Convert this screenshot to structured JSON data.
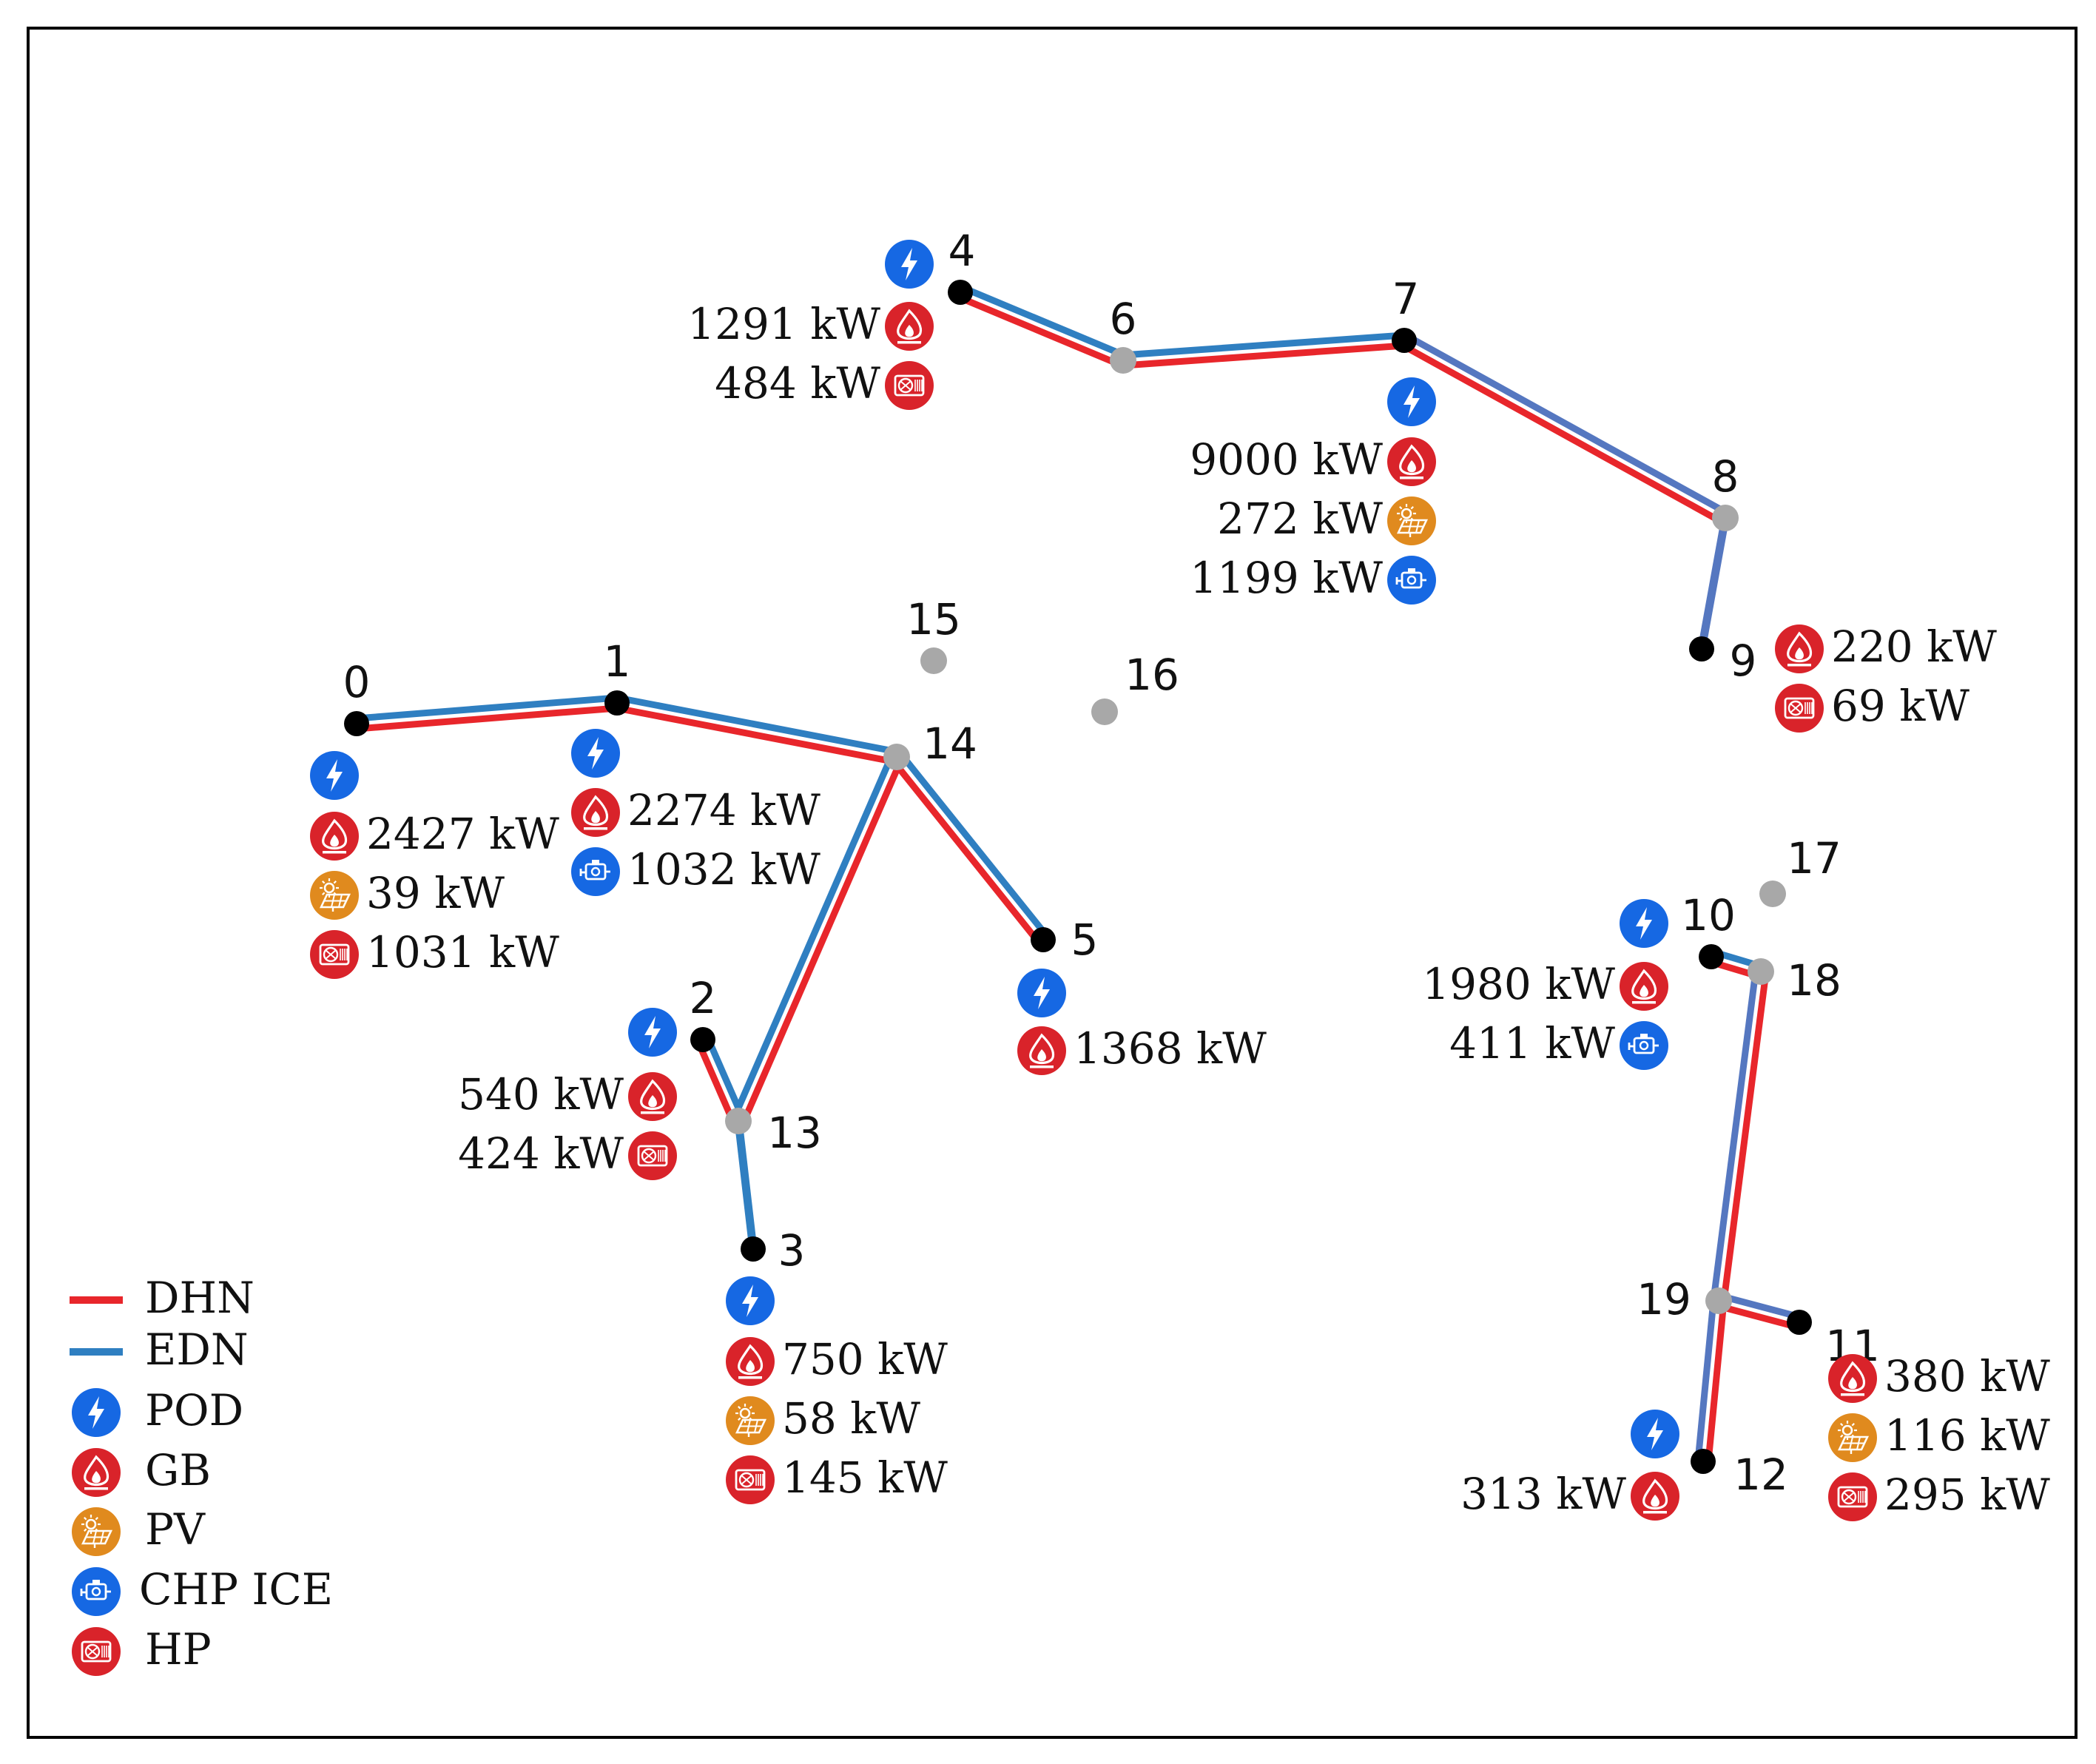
{
  "colors": {
    "dhn": "#e8262b",
    "edn": "#2f7fc1",
    "edn_alt": "#5577c0",
    "pod": "#1668e3",
    "gb": "#d9232a",
    "pv": "#e08a1e",
    "chp": "#1668e3",
    "hp": "#d9232a",
    "node_black": "#000000",
    "node_gray": "#a8a8a8"
  },
  "legend": [
    {
      "key": "dhn",
      "label": "DHN",
      "kind": "line"
    },
    {
      "key": "edn",
      "label": "EDN",
      "kind": "line"
    },
    {
      "key": "pod",
      "label": "POD",
      "kind": "icon"
    },
    {
      "key": "gb",
      "label": "GB",
      "kind": "icon"
    },
    {
      "key": "pv",
      "label": "PV",
      "kind": "icon"
    },
    {
      "key": "chp",
      "label": "CHP ICE",
      "kind": "icon"
    },
    {
      "key": "hp",
      "label": "HP",
      "kind": "icon"
    }
  ],
  "nodes": [
    {
      "id": "0",
      "label": "0",
      "type": "black"
    },
    {
      "id": "1",
      "label": "1",
      "type": "black"
    },
    {
      "id": "2",
      "label": "2",
      "type": "black"
    },
    {
      "id": "3",
      "label": "3",
      "type": "black"
    },
    {
      "id": "4",
      "label": "4",
      "type": "black"
    },
    {
      "id": "5",
      "label": "5",
      "type": "black"
    },
    {
      "id": "6",
      "label": "6",
      "type": "gray"
    },
    {
      "id": "7",
      "label": "7",
      "type": "black"
    },
    {
      "id": "8",
      "label": "8",
      "type": "gray"
    },
    {
      "id": "9",
      "label": "9",
      "type": "black"
    },
    {
      "id": "10",
      "label": "10",
      "type": "black"
    },
    {
      "id": "11",
      "label": "11",
      "type": "black"
    },
    {
      "id": "12",
      "label": "12",
      "type": "black"
    },
    {
      "id": "13",
      "label": "13",
      "type": "gray"
    },
    {
      "id": "14",
      "label": "14",
      "type": "gray"
    },
    {
      "id": "15",
      "label": "15",
      "type": "gray"
    },
    {
      "id": "16",
      "label": "16",
      "type": "gray"
    },
    {
      "id": "17",
      "label": "17",
      "type": "gray"
    },
    {
      "id": "18",
      "label": "18",
      "type": "gray"
    },
    {
      "id": "19",
      "label": "19",
      "type": "gray"
    }
  ],
  "edges": [
    {
      "from": "0",
      "to": "1",
      "networks": [
        "dhn",
        "edn"
      ]
    },
    {
      "from": "1",
      "to": "14",
      "networks": [
        "dhn",
        "edn"
      ]
    },
    {
      "from": "14",
      "to": "5",
      "networks": [
        "dhn",
        "edn"
      ]
    },
    {
      "from": "14",
      "to": "13",
      "networks": [
        "dhn",
        "edn"
      ]
    },
    {
      "from": "2",
      "to": "13",
      "networks": [
        "dhn",
        "edn"
      ]
    },
    {
      "from": "13",
      "to": "3",
      "networks": [
        "edn"
      ]
    },
    {
      "from": "4",
      "to": "6",
      "networks": [
        "dhn",
        "edn"
      ]
    },
    {
      "from": "6",
      "to": "7",
      "networks": [
        "dhn",
        "edn"
      ]
    },
    {
      "from": "7",
      "to": "8",
      "networks": [
        "dhn",
        "edn_alt"
      ]
    },
    {
      "from": "8",
      "to": "9",
      "networks": [
        "edn_alt"
      ]
    },
    {
      "from": "10",
      "to": "18",
      "networks": [
        "dhn",
        "edn"
      ]
    },
    {
      "from": "18",
      "to": "19",
      "networks": [
        "dhn",
        "edn_alt"
      ]
    },
    {
      "from": "19",
      "to": "11",
      "networks": [
        "dhn",
        "edn_alt"
      ]
    },
    {
      "from": "19",
      "to": "12",
      "networks": [
        "dhn",
        "edn_alt"
      ]
    }
  ],
  "pods": [
    "0",
    "1",
    "2",
    "3",
    "4",
    "5",
    "7",
    "10",
    "12"
  ],
  "capacities": [
    {
      "node": "0",
      "tech": "gb",
      "value": "2427 kW"
    },
    {
      "node": "0",
      "tech": "pv",
      "value": "39 kW"
    },
    {
      "node": "0",
      "tech": "hp",
      "value": "1031 kW"
    },
    {
      "node": "1",
      "tech": "gb",
      "value": "2274 kW"
    },
    {
      "node": "1",
      "tech": "chp",
      "value": "1032 kW"
    },
    {
      "node": "2",
      "tech": "gb",
      "value": "540 kW"
    },
    {
      "node": "2",
      "tech": "hp",
      "value": "424 kW"
    },
    {
      "node": "3",
      "tech": "gb",
      "value": "750 kW"
    },
    {
      "node": "3",
      "tech": "pv",
      "value": "58 kW"
    },
    {
      "node": "3",
      "tech": "hp",
      "value": "145 kW"
    },
    {
      "node": "4",
      "tech": "gb",
      "value": "1291 kW"
    },
    {
      "node": "4",
      "tech": "hp",
      "value": "484 kW"
    },
    {
      "node": "5",
      "tech": "gb",
      "value": "1368 kW"
    },
    {
      "node": "7",
      "tech": "gb",
      "value": "9000 kW"
    },
    {
      "node": "7",
      "tech": "pv",
      "value": "272 kW"
    },
    {
      "node": "7",
      "tech": "chp",
      "value": "1199 kW"
    },
    {
      "node": "9",
      "tech": "gb",
      "value": "220 kW"
    },
    {
      "node": "9",
      "tech": "hp",
      "value": "69 kW"
    },
    {
      "node": "10",
      "tech": "gb",
      "value": "1980 kW"
    },
    {
      "node": "10",
      "tech": "chp",
      "value": "411 kW"
    },
    {
      "node": "11",
      "tech": "gb",
      "value": "380 kW"
    },
    {
      "node": "11",
      "tech": "pv",
      "value": "116 kW"
    },
    {
      "node": "11",
      "tech": "hp",
      "value": "295 kW"
    },
    {
      "node": "12",
      "tech": "gb",
      "value": "313 kW"
    }
  ]
}
